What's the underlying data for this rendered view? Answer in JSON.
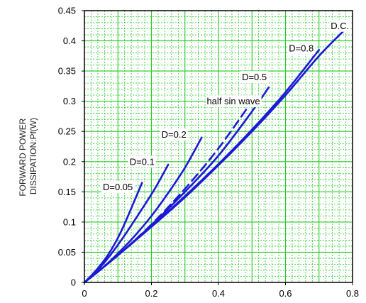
{
  "chart_data": {
    "type": "line",
    "title": "",
    "xlabel": "",
    "ylabel": "FORWARD POWER DISSIPATION:Pf(W)",
    "ylabel_lines": [
      "FORWARD POWER",
      "DISSIPATION:Pf(W)"
    ],
    "xlim": [
      0,
      0.8
    ],
    "ylim": [
      0,
      0.45
    ],
    "x_ticks": [
      "0",
      "0.2",
      "0.4",
      "0.6",
      "0.8"
    ],
    "y_ticks": [
      "0",
      "0.05",
      "0.1",
      "0.15",
      "0.2",
      "0.25",
      "0.3",
      "0.35",
      "0.4",
      "0.45"
    ],
    "grid": true,
    "colors": {
      "line": "#1a1ad6",
      "grid": "#22cc22",
      "axes": "#000000"
    },
    "series": [
      {
        "name": "D=0.05",
        "dashed": false,
        "x": [
          0,
          0.02,
          0.05,
          0.08,
          0.11,
          0.14,
          0.172
        ],
        "y": [
          0,
          0.011,
          0.03,
          0.054,
          0.085,
          0.123,
          0.165
        ]
      },
      {
        "name": "D=0.1",
        "dashed": false,
        "x": [
          0,
          0.03,
          0.07,
          0.12,
          0.17,
          0.21,
          0.25
        ],
        "y": [
          0,
          0.015,
          0.04,
          0.078,
          0.12,
          0.155,
          0.195
        ]
      },
      {
        "name": "D=0.2",
        "dashed": false,
        "x": [
          0,
          0.05,
          0.1,
          0.15,
          0.2,
          0.25,
          0.3,
          0.35
        ],
        "y": [
          0,
          0.022,
          0.048,
          0.077,
          0.11,
          0.148,
          0.19,
          0.24
        ]
      },
      {
        "name": "half sin wave",
        "dashed": true,
        "x": [
          0,
          0.1,
          0.2,
          0.3,
          0.4,
          0.5
        ],
        "y": [
          0,
          0.045,
          0.096,
          0.155,
          0.222,
          0.3
        ]
      },
      {
        "name": "D=0.5",
        "dashed": false,
        "x": [
          0,
          0.1,
          0.2,
          0.3,
          0.4,
          0.5,
          0.55
        ],
        "y": [
          0,
          0.045,
          0.095,
          0.15,
          0.21,
          0.283,
          0.323
        ]
      },
      {
        "name": "D=0.8",
        "dashed": false,
        "x": [
          0,
          0.1,
          0.2,
          0.3,
          0.4,
          0.5,
          0.6,
          0.7
        ],
        "y": [
          0,
          0.045,
          0.093,
          0.143,
          0.196,
          0.253,
          0.315,
          0.385
        ]
      },
      {
        "name": "D.C.",
        "dashed": false,
        "x": [
          0,
          0.1,
          0.2,
          0.3,
          0.4,
          0.5,
          0.6,
          0.7,
          0.78
        ],
        "y": [
          0,
          0.045,
          0.092,
          0.141,
          0.194,
          0.25,
          0.31,
          0.375,
          0.42
        ]
      }
    ],
    "annotations": [
      {
        "text": "D=0.05",
        "x": 0.055,
        "y": 0.158
      },
      {
        "text": "D=0.1",
        "x": 0.135,
        "y": 0.2
      },
      {
        "text": "D=0.2",
        "x": 0.23,
        "y": 0.245
      },
      {
        "text": "half sin wave",
        "x": 0.365,
        "y": 0.3
      },
      {
        "text": "D=0.5",
        "x": 0.47,
        "y": 0.34
      },
      {
        "text": "D=0.8",
        "x": 0.61,
        "y": 0.388
      },
      {
        "text": "D.C.",
        "x": 0.735,
        "y": 0.425
      }
    ]
  }
}
